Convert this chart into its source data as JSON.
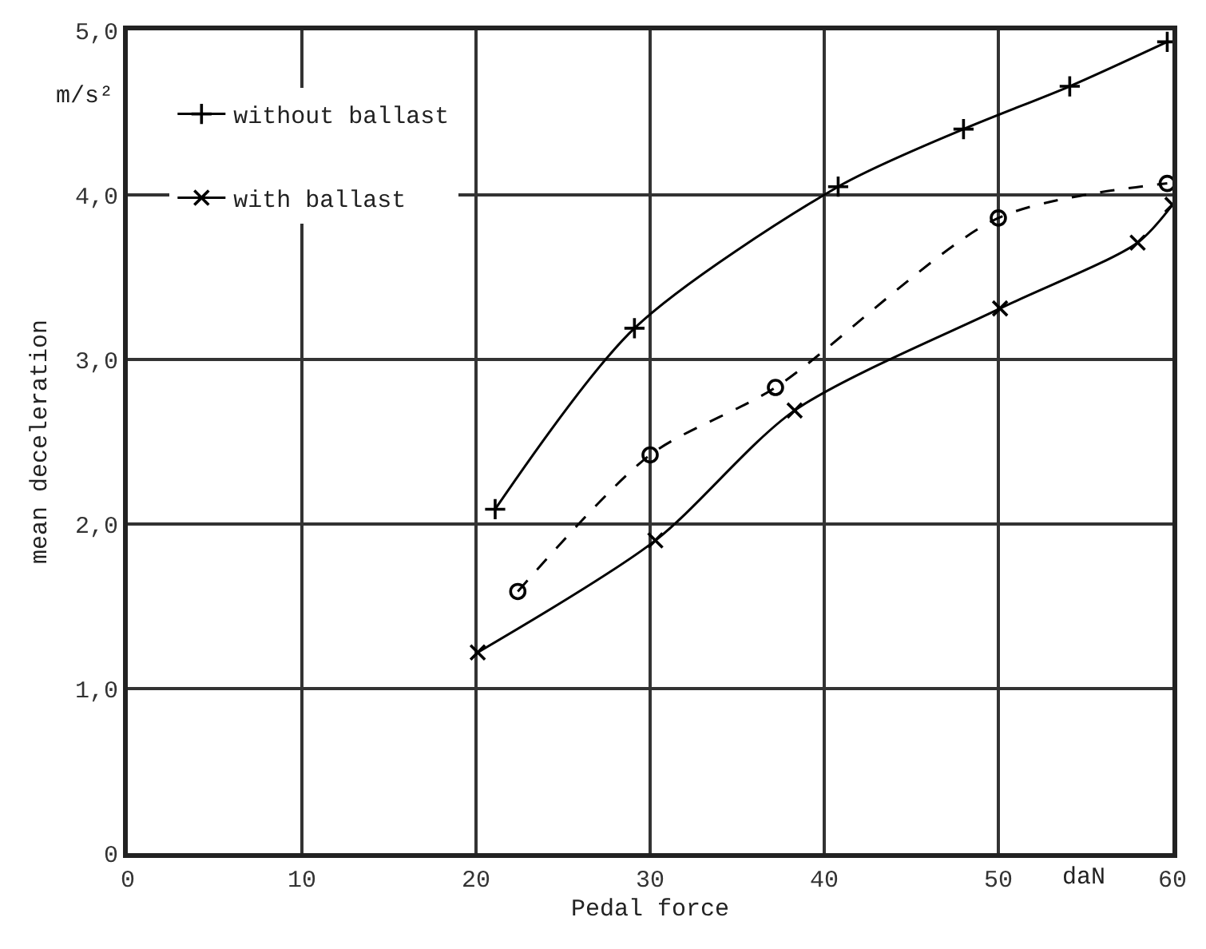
{
  "chart_data": {
    "type": "line",
    "xlabel": "Pedal force",
    "ylabel": "mean deceleration",
    "annotations": [
      "m/s²",
      "daN"
    ],
    "xlim": [
      0,
      60
    ],
    "xticks": [
      0,
      10,
      20,
      30,
      40,
      50,
      60
    ],
    "ylim": [
      0,
      5
    ],
    "yticks": [
      0,
      {
        "value": 1,
        "label": "1,0"
      },
      {
        "value": 2,
        "label": "2,0"
      },
      {
        "value": 3,
        "label": "3,0"
      },
      {
        "value": 4,
        "label": "4,0"
      },
      {
        "value": 5,
        "label": "5,0"
      }
    ],
    "grid": true,
    "legend": "top left",
    "series": [
      {
        "name": "without ballast",
        "color": "#000000",
        "marker": "cross",
        "line_style": "solid",
        "x": [
          21.1,
          29.1,
          40.8,
          48.0,
          54.1,
          59.7
        ],
        "values": [
          2.09,
          3.19,
          4.05,
          4.4,
          4.66,
          4.93
        ]
      },
      {
        "name": "with ballast",
        "color": "#000000",
        "marker": "x",
        "line_style": "solid",
        "x": [
          20.1,
          30.3,
          38.3,
          50.1,
          58.0,
          60.0
        ],
        "values": [
          1.22,
          1.9,
          2.69,
          3.31,
          3.71,
          3.94
        ]
      },
      {
        "color": "#000000",
        "marker": "circle",
        "line_style": "dashed",
        "x": [
          22.4,
          30.0,
          37.2,
          50.0,
          59.7
        ],
        "values": [
          1.59,
          2.42,
          2.83,
          3.86,
          4.07
        ]
      }
    ]
  }
}
